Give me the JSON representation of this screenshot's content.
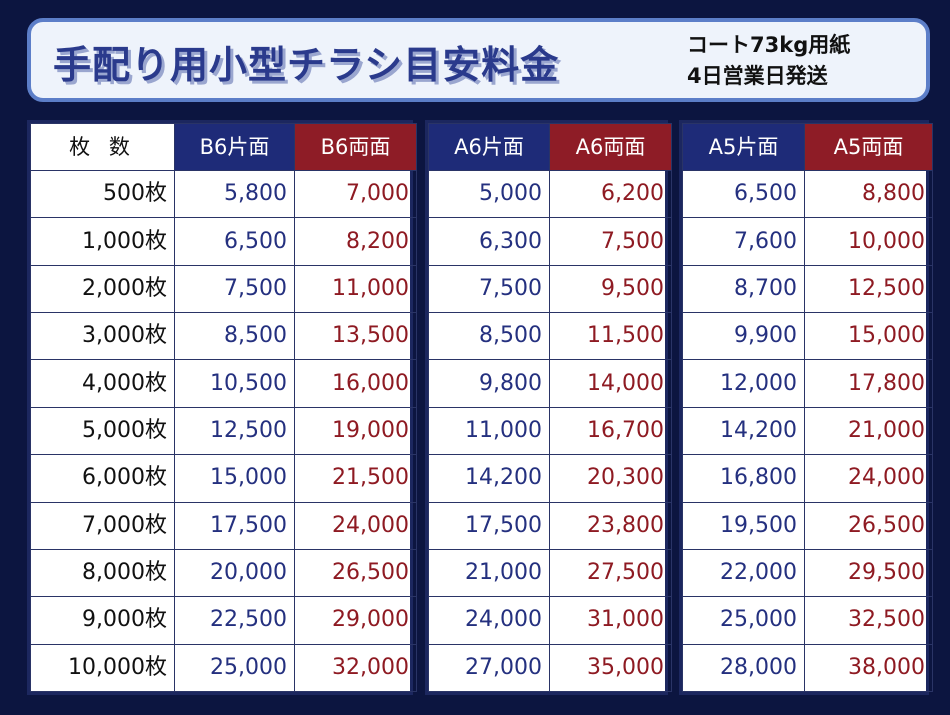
{
  "header": {
    "title": "手配り用小型チラシ目安料金",
    "sub_line1": "コート73kg用紙",
    "sub_line2": "4日営業日発送"
  },
  "table": {
    "label_header": "枚 数",
    "columns": [
      "B6片面",
      "B6両面",
      "A6片面",
      "A6両面",
      "A5片面",
      "A5両面"
    ],
    "rows": [
      {
        "qty": "500枚",
        "b6s": "5,800",
        "b6d": "7,000",
        "a6s": "5,000",
        "a6d": "6,200",
        "a5s": "6,500",
        "a5d": "8,800"
      },
      {
        "qty": "1,000枚",
        "b6s": "6,500",
        "b6d": "8,200",
        "a6s": "6,300",
        "a6d": "7,500",
        "a5s": "7,600",
        "a5d": "10,000"
      },
      {
        "qty": "2,000枚",
        "b6s": "7,500",
        "b6d": "11,000",
        "a6s": "7,500",
        "a6d": "9,500",
        "a5s": "8,700",
        "a5d": "12,500"
      },
      {
        "qty": "3,000枚",
        "b6s": "8,500",
        "b6d": "13,500",
        "a6s": "8,500",
        "a6d": "11,500",
        "a5s": "9,900",
        "a5d": "15,000"
      },
      {
        "qty": "4,000枚",
        "b6s": "10,500",
        "b6d": "16,000",
        "a6s": "9,800",
        "a6d": "14,000",
        "a5s": "12,000",
        "a5d": "17,800"
      },
      {
        "qty": "5,000枚",
        "b6s": "12,500",
        "b6d": "19,000",
        "a6s": "11,000",
        "a6d": "16,700",
        "a5s": "14,200",
        "a5d": "21,000"
      },
      {
        "qty": "6,000枚",
        "b6s": "15,000",
        "b6d": "21,500",
        "a6s": "14,200",
        "a6d": "20,300",
        "a5s": "16,800",
        "a5d": "24,000"
      },
      {
        "qty": "7,000枚",
        "b6s": "17,500",
        "b6d": "24,000",
        "a6s": "17,500",
        "a6d": "23,800",
        "a5s": "19,500",
        "a5d": "26,500"
      },
      {
        "qty": "8,000枚",
        "b6s": "20,000",
        "b6d": "26,500",
        "a6s": "21,000",
        "a6d": "27,500",
        "a5s": "22,000",
        "a5d": "29,500"
      },
      {
        "qty": "9,000枚",
        "b6s": "22,500",
        "b6d": "29,000",
        "a6s": "24,000",
        "a6d": "31,000",
        "a5s": "25,000",
        "a5d": "32,500"
      },
      {
        "qty": "10,000枚",
        "b6s": "25,000",
        "b6d": "32,000",
        "a6s": "27,000",
        "a6d": "35,000",
        "a5s": "28,000",
        "a5d": "38,000"
      }
    ]
  },
  "colors": {
    "background": "#0c1540",
    "header_bg": "#eef3fb",
    "header_border": "#5c7ec8",
    "single_side": "#1e2b78",
    "double_side": "#8e1c26"
  }
}
